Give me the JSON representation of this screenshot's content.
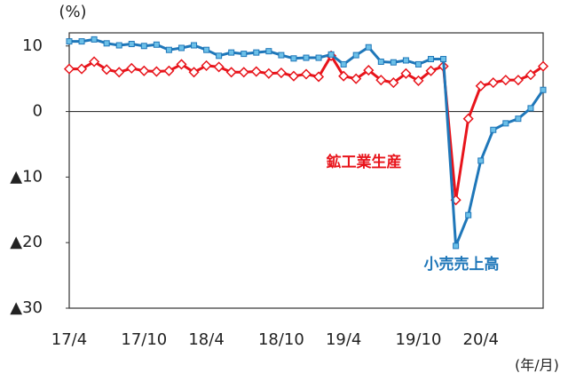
{
  "chart_data": {
    "type": "line",
    "ylabel": "(%)",
    "xlabel": "(年/月)",
    "categories": [
      "17/4",
      null,
      null,
      null,
      null,
      null,
      "17/10",
      null,
      null,
      null,
      null,
      "18/4",
      null,
      null,
      null,
      null,
      null,
      "18/10",
      null,
      null,
      null,
      null,
      "19/4",
      null,
      null,
      null,
      null,
      null,
      "19/10",
      null,
      null,
      null,
      null,
      "20/4",
      null,
      null,
      null,
      null,
      null
    ],
    "series": [
      {
        "name": "鉱工業生産",
        "color": "#e8141b",
        "marker": "diamond",
        "values": [
          6.5,
          6.5,
          7.6,
          6.4,
          6.0,
          6.6,
          6.2,
          6.1,
          6.2,
          7.2,
          6.0,
          7.0,
          6.8,
          6.0,
          6.0,
          6.1,
          5.8,
          5.9,
          5.4,
          5.7,
          5.3,
          8.5,
          5.4,
          5.0,
          6.3,
          4.8,
          4.4,
          5.8,
          4.7,
          6.2,
          6.9,
          -13.5,
          -1.1,
          3.9,
          4.4,
          4.8,
          4.8,
          5.6,
          6.9
        ]
      },
      {
        "name": "小売売上高",
        "color": "#1f77b9",
        "marker": "square",
        "values": [
          10.7,
          10.7,
          11.0,
          10.4,
          10.1,
          10.3,
          10.0,
          10.2,
          9.4,
          9.7,
          10.1,
          9.4,
          8.5,
          9.0,
          8.8,
          9.0,
          9.2,
          8.6,
          8.1,
          8.2,
          8.2,
          8.7,
          7.2,
          8.6,
          9.8,
          7.6,
          7.5,
          7.8,
          7.2,
          8.0,
          8.0,
          -20.5,
          -15.8,
          -7.5,
          -2.8,
          -1.8,
          -1.1,
          0.5,
          3.3
        ]
      }
    ],
    "ylim": [
      -30,
      12
    ],
    "yticks": [
      {
        "value": -30,
        "label": "▲30"
      },
      {
        "value": -20,
        "label": "▲20"
      },
      {
        "value": -10,
        "label": "▲10"
      },
      0,
      10
    ],
    "grid": false
  }
}
